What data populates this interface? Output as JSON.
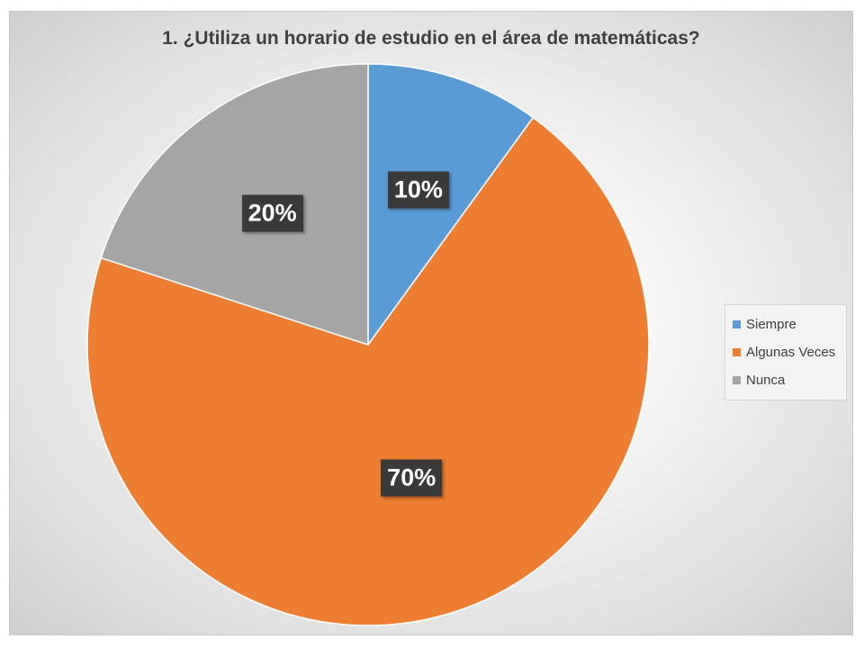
{
  "chart_data": {
    "type": "pie",
    "title": "1. ¿Utiliza un horario de estudio en el área de matemáticas?",
    "categories": [
      "Siempre",
      "Algunas Veces",
      "Nunca"
    ],
    "values": [
      10,
      70,
      20
    ],
    "labels": [
      "10%",
      "70%",
      "20%"
    ],
    "colors": [
      "#5b9bd5",
      "#ed7d31",
      "#a5a5a5"
    ],
    "start_angle_deg": 0,
    "direction": "clockwise",
    "legend_position": "right"
  }
}
